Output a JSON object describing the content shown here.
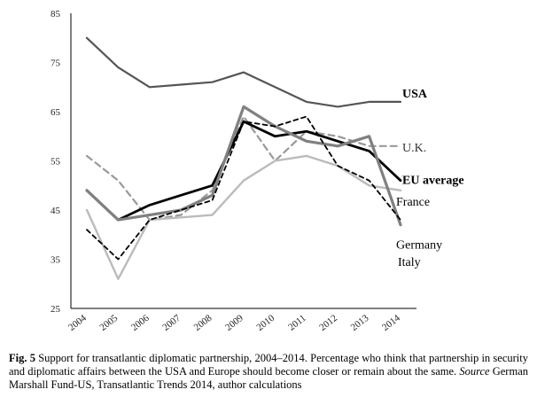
{
  "chart_data": {
    "type": "line",
    "title": "",
    "xlabel": "",
    "ylabel": "",
    "x": [
      "2004",
      "2005",
      "2006",
      "2007",
      "2008",
      "2009",
      "2010",
      "2011",
      "2012",
      "2013",
      "2014"
    ],
    "ylim": [
      25,
      85
    ],
    "yticks": [
      25,
      35,
      45,
      55,
      65,
      75,
      85
    ],
    "grid": false,
    "legend": "inline-right",
    "series": [
      {
        "name": "USA",
        "values": [
          80,
          74,
          70,
          70.5,
          71,
          73,
          70,
          67,
          66,
          67,
          67
        ],
        "color": "#555555",
        "dash": "",
        "width": 2.2,
        "label_bold": true
      },
      {
        "name": "U.K.",
        "values": [
          56,
          51,
          43,
          44,
          49,
          64,
          55,
          61,
          60,
          58,
          58
        ],
        "color": "#999999",
        "dash": "7,5",
        "width": 2.2,
        "label_bold": false
      },
      {
        "name": "EU average",
        "values": [
          49,
          43,
          46,
          48,
          50,
          63,
          60,
          61,
          59,
          57,
          51
        ],
        "color": "#000000",
        "dash": "",
        "width": 2.8,
        "label_bold": true
      },
      {
        "name": "France",
        "values": [
          45,
          31,
          43,
          43.5,
          44,
          51,
          55,
          56,
          54,
          50,
          49
        ],
        "color": "#bbbbbb",
        "dash": "",
        "width": 2.4,
        "label_bold": false
      },
      {
        "name": "Germany",
        "values": [
          49,
          43,
          44,
          45,
          48,
          66,
          62,
          59,
          58,
          60,
          42
        ],
        "color": "#808080",
        "dash": "",
        "width": 3.2,
        "label_bold": false
      },
      {
        "name": "Italy",
        "values": [
          41,
          35,
          43,
          45,
          47,
          63,
          62,
          64,
          54,
          51,
          43
        ],
        "color": "#000000",
        "dash": "5,4",
        "width": 1.8,
        "label_bold": false
      }
    ]
  },
  "caption": {
    "fig_label": "Fig. 5",
    "text_1": " Support for transatlantic diplomatic partnership, 2004–2014. Percentage who think that partnership in security and diplomatic affairs between the USA and Europe should become closer or remain about the same. ",
    "source_label": "Source",
    "text_2": " German Marshall Fund-US, Transatlantic Trends 2014, author calculations"
  }
}
